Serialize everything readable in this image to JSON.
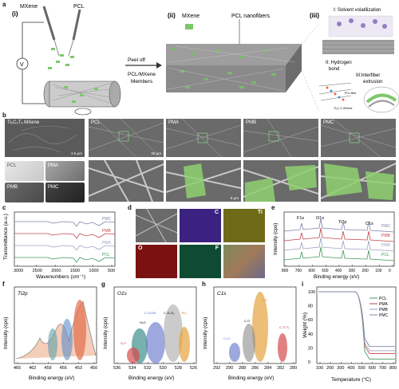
{
  "panel_labels": {
    "a": "a",
    "b": "b",
    "c": "c",
    "d": "d",
    "e": "e",
    "f": "f",
    "g": "g",
    "h": "h",
    "i": "i"
  },
  "schematic": {
    "step_i": "(i)",
    "step_ii": "(ii)",
    "step_iii": "(iii)",
    "mxene": "MXene",
    "pcl": "PCL",
    "voltage": "V",
    "peel_off": "Peel off",
    "members": "PCL/MXene",
    "members2": "Members",
    "mxene_label": "MXene",
    "pcl_nanofibers": "PCL nanofibers",
    "mech_1": "I: Solvent volatilization",
    "mech_2a": "II: Hydrogen",
    "mech_2b": "bond",
    "mech_3a": "III:Interfiber",
    "mech_3b": "extrusion",
    "pcl_fiber": "PCL fiber",
    "ti3c2tx": "Ti₃C₂Tₓ MXene"
  },
  "sem": {
    "mxene": "Ti₃C₂Tₓ MXene",
    "pcl": "PCL",
    "pma": "PMA",
    "pmb": "PMB",
    "pmc": "PMC",
    "sb1": "2.5 μm",
    "sb2": "25 μm",
    "sb3": "5 μm"
  },
  "photos": {
    "pcl": "PCL",
    "pma": "PMA",
    "pmb": "PMB",
    "pmc": "PMC"
  },
  "ftir": {
    "ylabel": "Transmittance (a.u.)",
    "xlabel": "Wavenumbers (cm⁻¹)",
    "ticks": [
      "3000",
      "2500",
      "2000",
      "1500",
      "1000",
      "500"
    ],
    "series": [
      {
        "name": "PMC"
      },
      {
        "name": "PMB"
      },
      {
        "name": "PMA"
      },
      {
        "name": "PCL"
      }
    ],
    "colors": [
      "#7c86a8",
      "#c2464d",
      "#9aa1c4",
      "#3e9a5a"
    ]
  },
  "edx": {
    "c": "C",
    "ti": "Ti",
    "o": "O",
    "f": "F"
  },
  "xps": {
    "ylabel": "Intensity (cps)",
    "xlabel": "Binding energy (eV)",
    "ticks": [
      "800",
      "700",
      "600",
      "500",
      "400",
      "300",
      "200",
      "100",
      "0"
    ],
    "peaks": {
      "f1s": "F1s",
      "o1s": "O1s",
      "ti2p": "Ti2p",
      "c1s": "C1s"
    },
    "series": [
      {
        "name": "PMC"
      },
      {
        "name": "PMB"
      },
      {
        "name": "PMA"
      },
      {
        "name": "PCL"
      }
    ],
    "colors": [
      "#7c86a8",
      "#c2464d",
      "#9aa1c4",
      "#3e9a5a"
    ]
  },
  "ti2p": {
    "title": "Ti2p",
    "ylabel": "Intensity (cps)",
    "xlabel": "Binding energy (eV)",
    "ticks": [
      "465",
      "462",
      "459",
      "456",
      "453",
      "450"
    ]
  },
  "o1s": {
    "title": "O1s",
    "ylabel": "Intensity (cps)",
    "xlabel": "Binding energy (eV)",
    "ticks": [
      "536",
      "534",
      "532",
      "530",
      "528",
      "526"
    ],
    "labels": {
      "c1": "C-O/OH",
      "c2": "H₂O",
      "c3": "C-Ti-O₂",
      "c4": "TiO₂",
      "c5": "O-F"
    }
  },
  "c1s": {
    "title": "C1s",
    "ylabel": "Intensity (cps)",
    "xlabel": "Binding energy (eV)",
    "ticks": [
      "292",
      "290",
      "288",
      "286",
      "284",
      "282",
      "280"
    ],
    "labels": {
      "a": "C-C",
      "b": "C-O",
      "c": "C=O",
      "d": "C-Ti-Tₓ"
    }
  },
  "tga": {
    "ylabel": "Weight (%)",
    "xlabel": "Temperature (°C)",
    "yticks": [
      "0",
      "20",
      "40",
      "60",
      "80",
      "100"
    ],
    "xticks": [
      "100",
      "200",
      "300",
      "400",
      "500",
      "600",
      "700",
      "800"
    ],
    "series": [
      {
        "name": "PCL"
      },
      {
        "name": "PMA"
      },
      {
        "name": "PMB"
      },
      {
        "name": "PMC"
      }
    ],
    "colors": [
      "#4b9a5c",
      "#c2464d",
      "#9aa1c4",
      "#7c86a8"
    ]
  }
}
